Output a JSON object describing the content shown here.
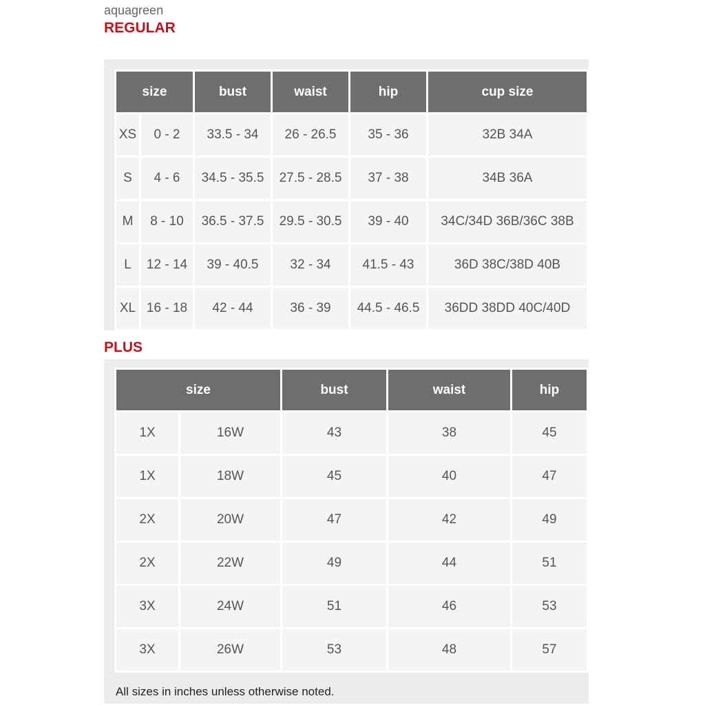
{
  "brand": "aquagreen",
  "regular": {
    "title": "REGULAR",
    "headers": [
      "size",
      "bust",
      "waist",
      "hip",
      "cup size"
    ],
    "rows": [
      [
        "XS",
        "0 - 2",
        "33.5 - 34",
        "26 - 26.5",
        "35 - 36",
        "32B 34A"
      ],
      [
        "S",
        "4 - 6",
        "34.5 - 35.5",
        "27.5 - 28.5",
        "37 - 38",
        "34B 36A"
      ],
      [
        "M",
        "8 - 10",
        "36.5 - 37.5",
        "29.5 - 30.5",
        "39 - 40",
        "34C/34D 36B/36C 38B"
      ],
      [
        "L",
        "12 - 14",
        "39 - 40.5",
        "32 - 34",
        "41.5 - 43",
        "36D 38C/38D 40B"
      ],
      [
        "XL",
        "16 - 18",
        "42 - 44",
        "36 - 39",
        "44.5 - 46.5",
        "36DD 38DD 40C/40D"
      ]
    ]
  },
  "plus": {
    "title": "PLUS",
    "headers": [
      "size",
      "bust",
      "waist",
      "hip"
    ],
    "rows": [
      [
        "1X",
        "16W",
        "43",
        "38",
        "45"
      ],
      [
        "1X",
        "18W",
        "45",
        "40",
        "47"
      ],
      [
        "2X",
        "20W",
        "47",
        "42",
        "49"
      ],
      [
        "2X",
        "22W",
        "49",
        "44",
        "51"
      ],
      [
        "3X",
        "24W",
        "51",
        "46",
        "53"
      ],
      [
        "3X",
        "26W",
        "53",
        "48",
        "57"
      ]
    ]
  },
  "footnote": "All sizes in inches unless otherwise noted."
}
